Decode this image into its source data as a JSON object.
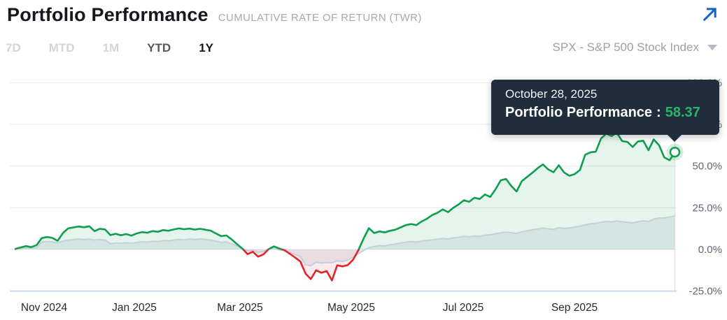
{
  "header": {
    "title": "Portfolio Performance",
    "subtitle": "CUMULATIVE RATE OF RETURN (TWR)"
  },
  "toolbar": {
    "ranges": [
      {
        "label": "7D",
        "state": "inactive"
      },
      {
        "label": "MTD",
        "state": "inactive"
      },
      {
        "label": "1M",
        "state": "inactive"
      },
      {
        "label": "YTD",
        "state": "secondary"
      },
      {
        "label": "1Y",
        "state": "active"
      }
    ],
    "benchmark_selector": {
      "value": "SPX - S&P 500 Stock Index",
      "icon": "caret-down-icon"
    },
    "expand_icon": "arrow-up-right-icon"
  },
  "tooltip": {
    "date": "October 28, 2025",
    "series_label": "Portfolio Performance",
    "separator": ":",
    "value": "58.37",
    "value_color": "#27b566",
    "background": "#202d3c"
  },
  "chart_data": {
    "type": "area",
    "title": "Portfolio Performance — Cumulative Rate of Return (TWR), 1Y",
    "x_ticks": [
      "Nov 2024",
      "Jan 2025",
      "Mar 2025",
      "May 2025",
      "Jul 2025",
      "Sep 2025"
    ],
    "y_ticks": [
      "100.0%",
      "75.0%",
      "50.0%",
      "25.0%",
      "0.0%",
      "-25.0%"
    ],
    "y_tick_values": [
      100,
      75,
      50,
      25,
      0,
      -25
    ],
    "ylim": [
      -25,
      110
    ],
    "grid": "horizontal",
    "legend": "none",
    "hover": {
      "date": "October 28, 2025",
      "value": 58.37
    },
    "end_marker": {
      "series": "Portfolio Performance",
      "value": 58.37
    },
    "colors": {
      "positive_line": "#0f9e4e",
      "negative_line": "#e0252b",
      "positive_fill": "rgba(15,158,78,0.11)",
      "negative_fill": "rgba(224,37,43,0.09)",
      "benchmark_line": "#c5d0da",
      "benchmark_fill": "rgba(178,194,207,0.25)",
      "grid_line": "#e8e9ea",
      "grid_line_bottom": "#ccd8ea",
      "crosshair": "#d8dbdf"
    },
    "series": [
      {
        "name": "Portfolio Performance",
        "unit": "%",
        "values": [
          0.3,
          1.2,
          2.0,
          1.4,
          2.6,
          6.8,
          7.5,
          6.9,
          5.2,
          9.8,
          12.6,
          13.2,
          13.8,
          13.3,
          13.9,
          11.0,
          12.4,
          12.0,
          8.6,
          9.4,
          8.5,
          9.2,
          8.3,
          9.6,
          10.4,
          10.0,
          11.0,
          10.6,
          11.6,
          11.2,
          12.0,
          12.6,
          12.1,
          12.5,
          11.9,
          12.4,
          11.8,
          11.3,
          9.6,
          8.0,
          8.4,
          6.0,
          3.2,
          0.6,
          -2.8,
          -1.4,
          -4.3,
          -3.0,
          0.2,
          1.8,
          0.6,
          -0.4,
          -2.6,
          -4.8,
          -7.2,
          -14.5,
          -17.8,
          -12.5,
          -14.0,
          -13.0,
          -18.6,
          -9.5,
          -10.2,
          -9.4,
          -6.2,
          -0.5,
          6.5,
          12.8,
          9.8,
          10.8,
          10.2,
          11.2,
          11.8,
          13.2,
          14.6,
          15.2,
          14.6,
          16.8,
          18.4,
          20.6,
          22.0,
          24.0,
          22.4,
          25.0,
          27.0,
          29.5,
          28.6,
          31.0,
          30.2,
          33.0,
          31.5,
          36.0,
          41.5,
          42.3,
          38.0,
          34.8,
          41.0,
          43.5,
          46.0,
          48.8,
          51.0,
          48.0,
          46.3,
          50.5,
          46.2,
          44.2,
          45.2,
          47.6,
          56.8,
          58.3,
          58.6,
          66.5,
          69.5,
          68.0,
          70.0,
          65.0,
          64.5,
          61.5,
          64.8,
          65.2,
          59.5,
          66.0,
          62.5,
          55.2,
          53.5,
          58.37
        ]
      },
      {
        "name": "SPX - S&P 500 Stock Index",
        "unit": "%",
        "values": [
          0.2,
          0.6,
          0.9,
          0.7,
          1.1,
          4.4,
          4.8,
          4.5,
          4.0,
          5.0,
          5.6,
          5.9,
          6.2,
          5.9,
          6.1,
          5.6,
          5.9,
          5.7,
          3.4,
          3.9,
          3.6,
          4.0,
          3.7,
          4.2,
          4.6,
          4.4,
          4.9,
          4.7,
          5.3,
          5.1,
          5.6,
          6.0,
          5.7,
          6.2,
          5.9,
          6.3,
          6.0,
          5.7,
          5.0,
          4.2,
          4.5,
          3.4,
          2.0,
          0.6,
          -0.8,
          -0.4,
          -1.8,
          -1.2,
          0.2,
          0.6,
          -0.2,
          -0.8,
          -1.8,
          -3.0,
          -4.2,
          -9.2,
          -9.8,
          -7.6,
          -8.2,
          -7.8,
          -8.0,
          -6.8,
          -7.2,
          -6.4,
          -4.6,
          -2.6,
          -0.6,
          1.0,
          1.8,
          2.4,
          2.1,
          2.8,
          3.2,
          3.8,
          4.3,
          4.7,
          4.4,
          5.0,
          5.4,
          5.8,
          6.2,
          6.6,
          6.3,
          6.9,
          7.3,
          7.8,
          7.5,
          8.1,
          7.9,
          8.5,
          8.8,
          9.4,
          10.0,
          10.4,
          10.0,
          9.6,
          10.6,
          11.2,
          11.8,
          12.3,
          12.8,
          12.4,
          12.1,
          13.0,
          12.6,
          12.9,
          13.4,
          13.9,
          14.8,
          15.3,
          15.7,
          16.3,
          16.8,
          16.5,
          17.1,
          16.6,
          16.2,
          15.9,
          16.7,
          17.2,
          16.8,
          18.2,
          18.8,
          19.0,
          19.4,
          20.2
        ]
      }
    ]
  }
}
